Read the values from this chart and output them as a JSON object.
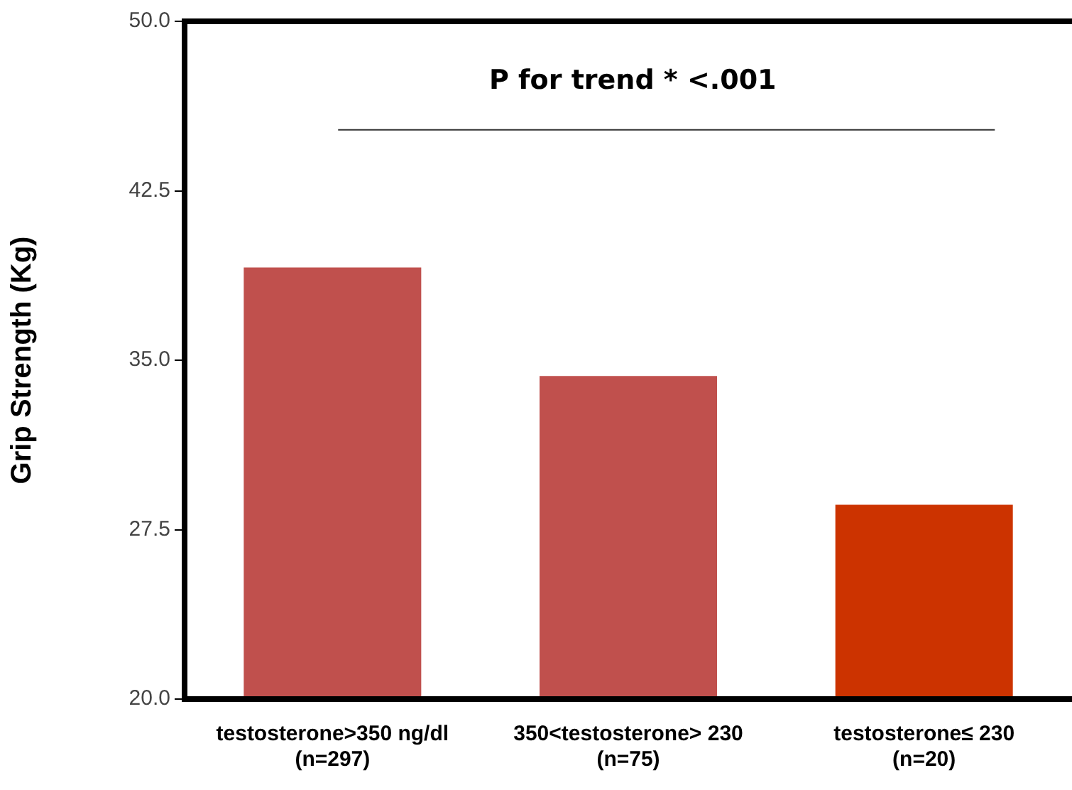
{
  "chart_data": {
    "type": "bar",
    "ylabel": "Grip Strength (Kg)",
    "categories": [
      "testosterone>350 ng/dl\n(n=297)",
      "350<testosterone> 230\n(n=75)",
      "testosterone≤ 230\n(n=20)"
    ],
    "values": [
      39.1,
      34.3,
      28.6
    ],
    "colors": [
      "#c0504d",
      "#c0504d",
      "#cc3300"
    ],
    "ylim": [
      20,
      50
    ],
    "yticks": [
      {
        "value": 20,
        "label": "20.0"
      },
      27.5,
      {
        "value": 35,
        "label": "35.0"
      },
      42.5,
      {
        "value": 50,
        "label": "50.0"
      }
    ],
    "grid": false,
    "ref_lines": [
      {
        "axis": "y",
        "value": 45.2,
        "label": "P for trend * <.001",
        "color": "#333333"
      }
    ]
  }
}
